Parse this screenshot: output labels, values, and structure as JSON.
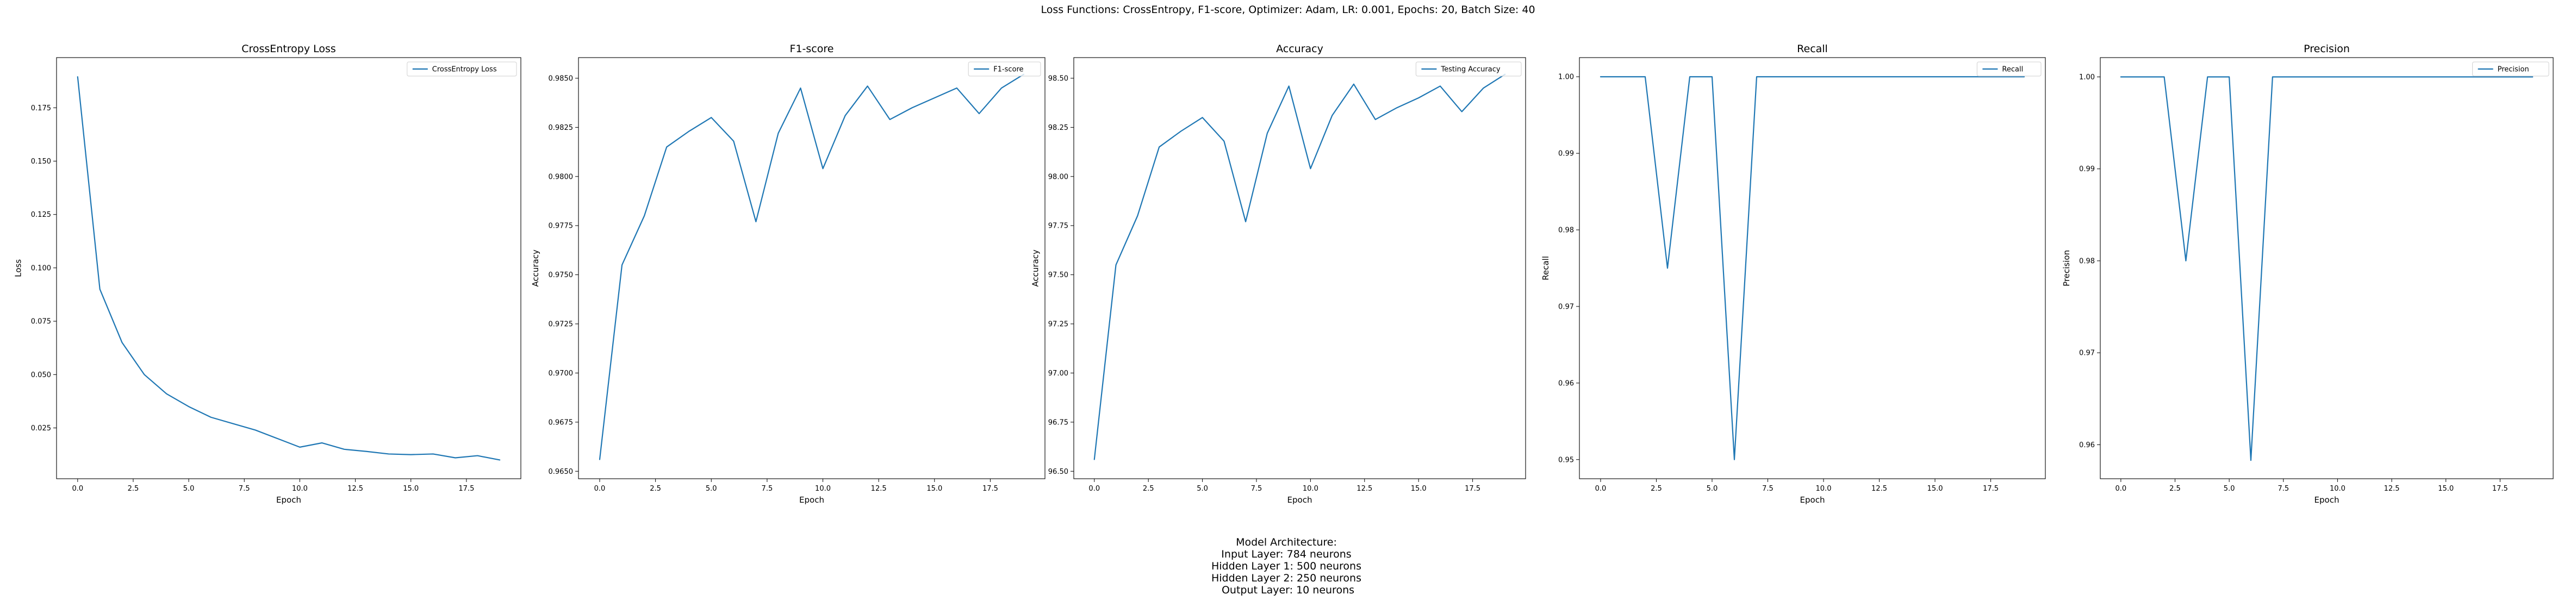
{
  "figure": {
    "suptitle": "Loss Functions: CrossEntropy, F1-score, Optimizer: Adam, LR: 0.001, Epochs: 20, Batch Size: 40",
    "architecture": [
      "Model Architecture:",
      "Input Layer: 784 neurons",
      "Hidden Layer 1: 500 neurons",
      "Hidden Layer 2: 250 neurons",
      "Output Layer: 10 neurons"
    ],
    "line_color": "#1f77b4"
  },
  "chart_data": [
    {
      "type": "line",
      "title": "CrossEntropy Loss",
      "xlabel": "Epoch",
      "ylabel": "Loss",
      "xlim": [
        -0.95,
        19.95
      ],
      "ylim": [
        0.0012,
        0.1985
      ],
      "xticks": [
        0.0,
        2.5,
        5.0,
        7.5,
        10.0,
        12.5,
        15.0,
        17.5
      ],
      "xtick_labels": [
        "0.0",
        "2.5",
        "5.0",
        "7.5",
        "10.0",
        "12.5",
        "15.0",
        "17.5"
      ],
      "yticks": [
        0.025,
        0.05,
        0.075,
        0.1,
        0.125,
        0.15,
        0.175
      ],
      "ytick_labels": [
        "0.025",
        "0.050",
        "0.075",
        "0.100",
        "0.125",
        "0.150",
        "0.175"
      ],
      "legend": "upper right",
      "grid": false,
      "series": [
        {
          "name": "CrossEntropy Loss",
          "x": [
            0,
            1,
            2,
            3,
            4,
            5,
            6,
            7,
            8,
            9,
            10,
            11,
            12,
            13,
            14,
            15,
            16,
            17,
            18,
            19
          ],
          "y": [
            0.1895,
            0.09,
            0.065,
            0.05,
            0.041,
            0.035,
            0.03,
            0.027,
            0.024,
            0.02,
            0.016,
            0.018,
            0.015,
            0.014,
            0.0128,
            0.0125,
            0.0128,
            0.011,
            0.012,
            0.01
          ]
        }
      ]
    },
    {
      "type": "line",
      "title": "F1-score",
      "xlabel": "Epoch",
      "ylabel": "Accuracy",
      "xlim": [
        -0.95,
        19.95
      ],
      "ylim": [
        0.96462,
        0.98605
      ],
      "xticks": [
        0.0,
        2.5,
        5.0,
        7.5,
        10.0,
        12.5,
        15.0,
        17.5
      ],
      "xtick_labels": [
        "0.0",
        "2.5",
        "5.0",
        "7.5",
        "10.0",
        "12.5",
        "15.0",
        "17.5"
      ],
      "yticks": [
        0.965,
        0.9675,
        0.97,
        0.9725,
        0.975,
        0.9775,
        0.98,
        0.9825,
        0.985
      ],
      "ytick_labels": [
        "0.9650",
        "0.9675",
        "0.9700",
        "0.9725",
        "0.9750",
        "0.9775",
        "0.9800",
        "0.9825",
        "0.9850"
      ],
      "legend": "upper right",
      "grid": false,
      "series": [
        {
          "name": "F1-score",
          "x": [
            0,
            1,
            2,
            3,
            4,
            5,
            6,
            7,
            8,
            9,
            10,
            11,
            12,
            13,
            14,
            15,
            16,
            17,
            18,
            19
          ],
          "y": [
            0.9656,
            0.9755,
            0.978,
            0.9815,
            0.9823,
            0.983,
            0.9818,
            0.9777,
            0.9822,
            0.9845,
            0.9804,
            0.9831,
            0.9846,
            0.9829,
            0.9835,
            0.984,
            0.9845,
            0.9832,
            0.9845,
            0.9852
          ]
        }
      ]
    },
    {
      "type": "line",
      "title": "Accuracy",
      "xlabel": "Epoch",
      "ylabel": "Accuracy",
      "xlim": [
        -0.95,
        19.95
      ],
      "ylim": [
        96.462,
        98.605
      ],
      "xticks": [
        0.0,
        2.5,
        5.0,
        7.5,
        10.0,
        12.5,
        15.0,
        17.5
      ],
      "xtick_labels": [
        "0.0",
        "2.5",
        "5.0",
        "7.5",
        "10.0",
        "12.5",
        "15.0",
        "17.5"
      ],
      "yticks": [
        96.5,
        96.75,
        97.0,
        97.25,
        97.5,
        97.75,
        98.0,
        98.25,
        98.5
      ],
      "ytick_labels": [
        "96.50",
        "96.75",
        "97.00",
        "97.25",
        "97.50",
        "97.75",
        "98.00",
        "98.25",
        "98.50"
      ],
      "legend": "upper right",
      "grid": false,
      "series": [
        {
          "name": "Testing Accuracy",
          "x": [
            0,
            1,
            2,
            3,
            4,
            5,
            6,
            7,
            8,
            9,
            10,
            11,
            12,
            13,
            14,
            15,
            16,
            17,
            18,
            19
          ],
          "y": [
            96.56,
            97.55,
            97.8,
            98.15,
            98.23,
            98.3,
            98.18,
            97.77,
            98.22,
            98.46,
            98.04,
            98.31,
            98.47,
            98.29,
            98.35,
            98.4,
            98.46,
            98.33,
            98.45,
            98.52
          ]
        }
      ]
    },
    {
      "type": "line",
      "title": "Recall",
      "xlabel": "Epoch",
      "ylabel": "Recall",
      "xlim": [
        -0.95,
        19.95
      ],
      "ylim": [
        0.9475,
        1.0025
      ],
      "xticks": [
        0.0,
        2.5,
        5.0,
        7.5,
        10.0,
        12.5,
        15.0,
        17.5
      ],
      "xtick_labels": [
        "0.0",
        "2.5",
        "5.0",
        "7.5",
        "10.0",
        "12.5",
        "15.0",
        "17.5"
      ],
      "yticks": [
        0.95,
        0.96,
        0.97,
        0.98,
        0.99,
        1.0
      ],
      "ytick_labels": [
        "0.95",
        "0.96",
        "0.97",
        "0.98",
        "0.99",
        "1.00"
      ],
      "legend": "upper right",
      "grid": false,
      "series": [
        {
          "name": "Recall",
          "x": [
            0,
            1,
            2,
            3,
            4,
            5,
            6,
            7,
            8,
            9,
            10,
            11,
            12,
            13,
            14,
            15,
            16,
            17,
            18,
            19
          ],
          "y": [
            1.0,
            1.0,
            1.0,
            0.975,
            1.0,
            1.0,
            0.95,
            1.0,
            1.0,
            1.0,
            1.0,
            1.0,
            1.0,
            1.0,
            1.0,
            1.0,
            1.0,
            1.0,
            1.0,
            1.0
          ]
        }
      ]
    },
    {
      "type": "line",
      "title": "Precision",
      "xlabel": "Epoch",
      "ylabel": "Precision",
      "xlim": [
        -0.95,
        19.95
      ],
      "ylim": [
        0.9563,
        1.0021
      ],
      "xticks": [
        0.0,
        2.5,
        5.0,
        7.5,
        10.0,
        12.5,
        15.0,
        17.5
      ],
      "xtick_labels": [
        "0.0",
        "2.5",
        "5.0",
        "7.5",
        "10.0",
        "12.5",
        "15.0",
        "17.5"
      ],
      "yticks": [
        0.96,
        0.97,
        0.98,
        0.99,
        1.0
      ],
      "ytick_labels": [
        "0.96",
        "0.97",
        "0.98",
        "0.99",
        "1.00"
      ],
      "legend": "upper right",
      "grid": false,
      "series": [
        {
          "name": "Precision",
          "x": [
            0,
            1,
            2,
            3,
            4,
            5,
            6,
            7,
            8,
            9,
            10,
            11,
            12,
            13,
            14,
            15,
            16,
            17,
            18,
            19
          ],
          "y": [
            1.0,
            1.0,
            1.0,
            0.98,
            1.0,
            1.0,
            0.9583,
            1.0,
            1.0,
            1.0,
            1.0,
            1.0,
            1.0,
            1.0,
            1.0,
            1.0,
            1.0,
            1.0,
            1.0,
            1.0
          ]
        }
      ]
    }
  ]
}
